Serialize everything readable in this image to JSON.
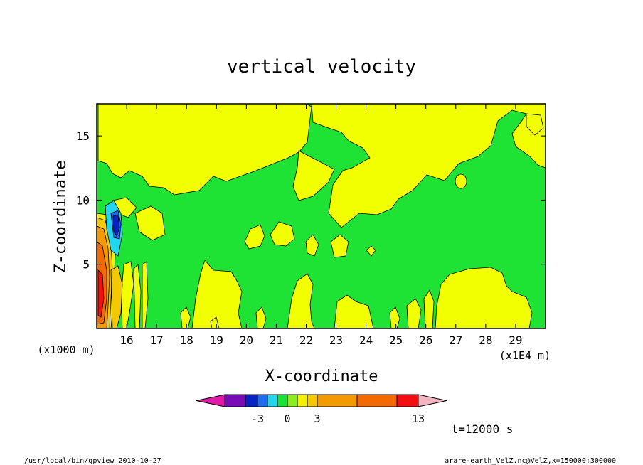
{
  "chart_data": {
    "type": "heatmap",
    "title": "vertical velocity",
    "xlabel": "X-coordinate",
    "ylabel": "Z-coordinate",
    "x_unit_label": "(x1E4 m)",
    "y_unit_label": "(x1000 m)",
    "x_ticks": [
      "16",
      "17",
      "18",
      "19",
      "20",
      "21",
      "22",
      "23",
      "24",
      "25",
      "26",
      "27",
      "28",
      "29"
    ],
    "y_ticks": [
      "5",
      "10",
      "15"
    ],
    "xlim": [
      15.0,
      30.0
    ],
    "ylim": [
      0,
      17.5
    ],
    "colorbar": {
      "colors": [
        "#e01aa8",
        "#7a0cb8",
        "#0a22c2",
        "#1d6cf0",
        "#22d6f0",
        "#19e23a",
        "#88ef1c",
        "#f2f200",
        "#f5c800",
        "#f29a00",
        "#f26a00",
        "#f20f12",
        "#f27878",
        "#f2b4c0"
      ],
      "tick_labels": [
        "-3",
        "0",
        "3",
        "13"
      ],
      "tick_values": [
        -3,
        0,
        3,
        13
      ]
    },
    "field_colors": {
      "background": "#1ee234",
      "positive": "#f2ff00"
    },
    "time_label": "t=12000 s",
    "grid": false
  },
  "footer": {
    "left": "/usr/local/bin/gpview   2010-10-27",
    "right": "arare-earth_VelZ.nc@VelZ,x=150000:300000"
  }
}
